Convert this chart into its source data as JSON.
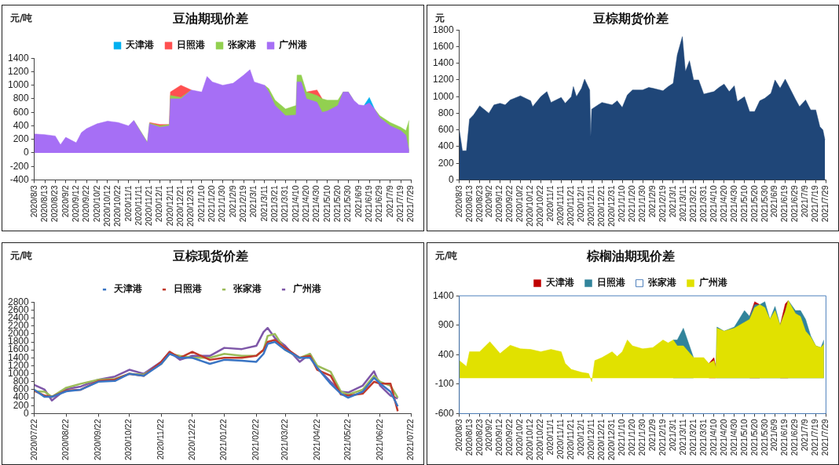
{
  "chart_data": [
    {
      "type": "area",
      "title": "豆油期现价差",
      "ylabel": "元/吨",
      "legend": "top",
      "grid": false,
      "marker": "none",
      "x": [
        "2020-08-03",
        "2020-08-13",
        "2020-08-23",
        "2020-08-28",
        "2020-09-02",
        "2020-09-12",
        "2020-09-17",
        "2020-09-22",
        "2020-10-02",
        "2020-10-12",
        "2020-10-22",
        "2020-11-01",
        "2020-11-06",
        "2020-11-11",
        "2020-11-19",
        "2020-11-21",
        "2020-12-01",
        "2020-12-10",
        "2020-12-11",
        "2020-12-21",
        "2020-12-31",
        "2021-01-10",
        "2021-01-15",
        "2021-01-20",
        "2021-01-30",
        "2021-02-09",
        "2021-02-19",
        "2021-02-25",
        "2021-03-01",
        "2021-03-11",
        "2021-03-15",
        "2021-03-21",
        "2021-03-31",
        "2021-04-10",
        "2021-04-11",
        "2021-04-15",
        "2021-04-20",
        "2021-04-30",
        "2021-05-05",
        "2021-05-10",
        "2021-05-20",
        "2021-05-25",
        "2021-05-30",
        "2021-06-04",
        "2021-06-09",
        "2021-06-14",
        "2021-06-19",
        "2021-06-24",
        "2021-06-29",
        "2021-07-09",
        "2021-07-19",
        "2021-07-24",
        "2021-07-27"
      ],
      "series": [
        {
          "name": "天津港",
          "color": "#00b0f0",
          "values": [
            null,
            null,
            null,
            null,
            null,
            null,
            null,
            null,
            null,
            null,
            null,
            null,
            null,
            null,
            null,
            null,
            null,
            null,
            null,
            null,
            null,
            null,
            null,
            null,
            null,
            null,
            null,
            null,
            null,
            null,
            null,
            null,
            null,
            null,
            null,
            null,
            null,
            null,
            null,
            null,
            null,
            null,
            null,
            null,
            null,
            700,
            820,
            650,
            null,
            null,
            null,
            null,
            null
          ]
        },
        {
          "name": "日照港",
          "color": "#ff5050",
          "values": [
            null,
            null,
            null,
            null,
            null,
            null,
            null,
            null,
            null,
            null,
            null,
            null,
            null,
            null,
            null,
            450,
            420,
            420,
            900,
            1000,
            930,
            null,
            null,
            null,
            null,
            null,
            null,
            null,
            null,
            null,
            null,
            null,
            null,
            null,
            null,
            null,
            900,
            930,
            800,
            null,
            null,
            null,
            null,
            null,
            null,
            null,
            null,
            null,
            null,
            null,
            null,
            null,
            null
          ]
        },
        {
          "name": "张家港",
          "color": "#92d050",
          "values": [
            null,
            null,
            null,
            null,
            null,
            null,
            null,
            null,
            null,
            null,
            null,
            null,
            480,
            360,
            160,
            440,
            400,
            420,
            850,
            820,
            930,
            null,
            null,
            null,
            null,
            null,
            null,
            null,
            null,
            1000,
            950,
            780,
            650,
            700,
            1150,
            1150,
            900,
            850,
            800,
            780,
            780,
            900,
            900,
            780,
            null,
            null,
            null,
            650,
            550,
            450,
            380,
            330,
            480
          ]
        },
        {
          "name": "广州港",
          "color": "#a66ff5",
          "values": [
            280,
            270,
            250,
            120,
            230,
            150,
            300,
            360,
            430,
            470,
            450,
            400,
            480,
            350,
            150,
            430,
            380,
            400,
            800,
            800,
            930,
            900,
            1130,
            1050,
            1000,
            1030,
            1150,
            1230,
            1050,
            1000,
            900,
            700,
            550,
            560,
            1050,
            1050,
            800,
            750,
            600,
            620,
            700,
            900,
            900,
            780,
            710,
            700,
            740,
            650,
            520,
            400,
            330,
            260,
            30
          ]
        }
      ],
      "ylim": [
        -400,
        1400
      ],
      "yticks": [
        -400,
        -200,
        0,
        200,
        400,
        600,
        800,
        1000,
        1200,
        1400
      ],
      "xlim": [
        "2020-08-03",
        "2021-07-29"
      ],
      "xticks": [
        {
          "value": "2020-08-03",
          "label": "2020/8/3"
        },
        {
          "value": "2020-08-13",
          "label": "2020/8/13"
        },
        {
          "value": "2020-08-23",
          "label": "2020/8/23"
        },
        {
          "value": "2020-09-02",
          "label": "2020/9/2"
        },
        {
          "value": "2020-09-12",
          "label": "2020/9/12"
        },
        {
          "value": "2020-09-22",
          "label": "2020/9/22"
        },
        {
          "value": "2020-10-02",
          "label": "2020/10/2"
        },
        {
          "value": "2020-10-12",
          "label": "2020/10/12"
        },
        {
          "value": "2020-10-22",
          "label": "2020/10/22"
        },
        {
          "value": "2020-11-01",
          "label": "2020/11/1"
        },
        {
          "value": "2020-11-11",
          "label": "2020/11/11"
        },
        {
          "value": "2020-11-21",
          "label": "2020/11/21"
        },
        {
          "value": "2020-12-01",
          "label": "2020/12/1"
        },
        {
          "value": "2020-12-11",
          "label": "2020/12/11"
        },
        {
          "value": "2020-12-21",
          "label": "2020/12/21"
        },
        {
          "value": "2020-12-31",
          "label": "2020/12/31"
        },
        {
          "value": "2021-01-10",
          "label": "2021/1/10"
        },
        {
          "value": "2021-01-20",
          "label": "2021/1/20"
        },
        {
          "value": "2021-01-30",
          "label": "2021/1/30"
        },
        {
          "value": "2021-02-09",
          "label": "2021/2/9"
        },
        {
          "value": "2021-02-19",
          "label": "2021/2/19"
        },
        {
          "value": "2021-03-01",
          "label": "2021/3/1"
        },
        {
          "value": "2021-03-11",
          "label": "2021/3/11"
        },
        {
          "value": "2021-03-21",
          "label": "2021/3/21"
        },
        {
          "value": "2021-03-31",
          "label": "2021/3/31"
        },
        {
          "value": "2021-04-10",
          "label": "2021/4/10"
        },
        {
          "value": "2021-04-20",
          "label": "2021/4/20"
        },
        {
          "value": "2021-04-30",
          "label": "2021/4/30"
        },
        {
          "value": "2021-05-10",
          "label": "2021/5/10"
        },
        {
          "value": "2021-05-20",
          "label": "2021/5/20"
        },
        {
          "value": "2021-05-30",
          "label": "2021/5/30"
        },
        {
          "value": "2021-06-09",
          "label": "2021/6/9"
        },
        {
          "value": "2021-06-19",
          "label": "2021/6/19"
        },
        {
          "value": "2021-06-29",
          "label": "2021/6/29"
        },
        {
          "value": "2021-07-09",
          "label": "2021/7/9"
        },
        {
          "value": "2021-07-19",
          "label": "2021/7/19"
        },
        {
          "value": "2021-07-29",
          "label": "2021/7/29"
        }
      ]
    },
    {
      "type": "area",
      "title": "豆棕期货价差",
      "ylabel": "元",
      "legend": false,
      "grid": false,
      "marker": "none",
      "x": [
        "2020-08-03",
        "2020-08-06",
        "2020-08-10",
        "2020-08-13",
        "2020-08-17",
        "2020-08-23",
        "2020-09-01",
        "2020-09-06",
        "2020-09-12",
        "2020-09-17",
        "2020-09-22",
        "2020-10-02",
        "2020-10-12",
        "2020-10-14",
        "2020-10-22",
        "2020-10-28",
        "2020-11-01",
        "2020-11-11",
        "2020-11-15",
        "2020-11-21",
        "2020-11-23",
        "2020-11-26",
        "2020-12-01",
        "2020-12-04",
        "2020-12-09",
        "2020-12-10",
        "2020-12-11",
        "2020-12-21",
        "2020-12-31",
        "2021-01-05",
        "2021-01-10",
        "2021-01-15",
        "2021-01-20",
        "2021-01-30",
        "2021-02-05",
        "2021-02-09",
        "2021-02-19",
        "2021-02-24",
        "2021-03-01",
        "2021-03-05",
        "2021-03-10",
        "2021-03-13",
        "2021-03-17",
        "2021-03-21",
        "2021-03-26",
        "2021-03-31",
        "2021-04-10",
        "2021-04-15",
        "2021-04-20",
        "2021-04-25",
        "2021-04-30",
        "2021-05-03",
        "2021-05-10",
        "2021-05-15",
        "2021-05-20",
        "2021-05-25",
        "2021-05-30",
        "2021-06-05",
        "2021-06-09",
        "2021-06-14",
        "2021-06-19",
        "2021-06-29",
        "2021-07-03",
        "2021-07-09",
        "2021-07-14",
        "2021-07-19",
        "2021-07-23",
        "2021-07-26",
        "2021-07-28"
      ],
      "series": [
        {
          "color": "#1f4678",
          "values": [
            600,
            350,
            350,
            730,
            780,
            890,
            800,
            900,
            920,
            900,
            960,
            1010,
            950,
            880,
            1000,
            1060,
            930,
            990,
            920,
            1000,
            1120,
            1000,
            1100,
            1210,
            1080,
            520,
            850,
            930,
            900,
            950,
            870,
            1020,
            1080,
            1080,
            1110,
            1100,
            1070,
            1120,
            1160,
            1500,
            1720,
            1300,
            1430,
            1200,
            1200,
            1030,
            1060,
            1110,
            1150,
            1060,
            1130,
            940,
            1000,
            820,
            820,
            950,
            980,
            1040,
            1200,
            1100,
            1210,
            970,
            880,
            960,
            840,
            840,
            640,
            600,
            480
          ]
        }
      ],
      "ylim": [
        0,
        1800
      ],
      "yticks": [
        0,
        200,
        400,
        600,
        800,
        1000,
        1200,
        1400,
        1600,
        1800
      ],
      "xlim": [
        "2020-08-03",
        "2021-07-29"
      ],
      "xticks": [
        {
          "value": "2020-08-03",
          "label": "2020/8/3"
        },
        {
          "value": "2020-08-13",
          "label": "2020/8/13"
        },
        {
          "value": "2020-08-23",
          "label": "2020/8/23"
        },
        {
          "value": "2020-09-02",
          "label": "2020/9/2"
        },
        {
          "value": "2020-09-12",
          "label": "2020/9/12"
        },
        {
          "value": "2020-09-22",
          "label": "2020/9/22"
        },
        {
          "value": "2020-10-02",
          "label": "2020/10/2"
        },
        {
          "value": "2020-10-12",
          "label": "2020/10/12"
        },
        {
          "value": "2020-10-22",
          "label": "2020/10/22"
        },
        {
          "value": "2020-11-01",
          "label": "2020/11/1"
        },
        {
          "value": "2020-11-11",
          "label": "2020/11/11"
        },
        {
          "value": "2020-11-21",
          "label": "2020/11/21"
        },
        {
          "value": "2020-12-01",
          "label": "2020/12/1"
        },
        {
          "value": "2020-12-11",
          "label": "2020/12/11"
        },
        {
          "value": "2020-12-21",
          "label": "2020/12/21"
        },
        {
          "value": "2020-12-31",
          "label": "2020/12/31"
        },
        {
          "value": "2021-01-10",
          "label": "2021/1/10"
        },
        {
          "value": "2021-01-20",
          "label": "2021/1/20"
        },
        {
          "value": "2021-01-30",
          "label": "2021/1/30"
        },
        {
          "value": "2021-02-09",
          "label": "2021/2/9"
        },
        {
          "value": "2021-02-19",
          "label": "2021/2/19"
        },
        {
          "value": "2021-03-01",
          "label": "2021/3/1"
        },
        {
          "value": "2021-03-11",
          "label": "2021/3/11"
        },
        {
          "value": "2021-03-21",
          "label": "2021/3/21"
        },
        {
          "value": "2021-03-31",
          "label": "2021/3/31"
        },
        {
          "value": "2021-04-10",
          "label": "2021/4/10"
        },
        {
          "value": "2021-04-20",
          "label": "2021/4/20"
        },
        {
          "value": "2021-04-30",
          "label": "2021/4/30"
        },
        {
          "value": "2021-05-10",
          "label": "2021/5/10"
        },
        {
          "value": "2021-05-20",
          "label": "2021/5/20"
        },
        {
          "value": "2021-05-30",
          "label": "2021/5/30"
        },
        {
          "value": "2021-06-09",
          "label": "2021/6/9"
        },
        {
          "value": "2021-06-19",
          "label": "2021/6/19"
        },
        {
          "value": "2021-06-29",
          "label": "2021/6/29"
        },
        {
          "value": "2021-07-09",
          "label": "2021/7/9"
        },
        {
          "value": "2021-07-19",
          "label": "2021/7/19"
        },
        {
          "value": "2021-07-29",
          "label": "2021/7/29"
        }
      ]
    },
    {
      "type": "line",
      "title": "豆棕现货价差",
      "ylabel": "元/吨",
      "legend": "top",
      "grid": false,
      "marker": "none",
      "line_style": "solid",
      "x": [
        "2020-07-22",
        "2020-08-01",
        "2020-08-08",
        "2020-08-22",
        "2020-09-05",
        "2020-09-22",
        "2020-10-08",
        "2020-10-22",
        "2020-11-05",
        "2020-11-22",
        "2020-11-30",
        "2020-12-10",
        "2020-12-22",
        "2021-01-08",
        "2021-01-22",
        "2021-02-08",
        "2021-02-22",
        "2021-03-01",
        "2021-03-05",
        "2021-03-12",
        "2021-03-22",
        "2021-04-05",
        "2021-04-15",
        "2021-04-22",
        "2021-05-05",
        "2021-05-15",
        "2021-05-22",
        "2021-06-05",
        "2021-06-16",
        "2021-06-22",
        "2021-07-02",
        "2021-07-09"
      ],
      "series": [
        {
          "name": "天津港",
          "color": "#3a75c4",
          "values": [
            600,
            420,
            420,
            560,
            600,
            800,
            820,
            1000,
            950,
            1250,
            1500,
            1400,
            1400,
            1250,
            1350,
            1330,
            1300,
            1500,
            1750,
            1800,
            1600,
            1400,
            1400,
            1150,
            750,
            500,
            400,
            550,
            900,
            750,
            550,
            180
          ]
        },
        {
          "name": "日照港",
          "color": "#c0392b",
          "values": [
            570,
            450,
            420,
            580,
            600,
            820,
            850,
            1000,
            950,
            1300,
            1550,
            1400,
            1550,
            1350,
            1400,
            1400,
            1450,
            1600,
            1800,
            1850,
            1650,
            1400,
            1450,
            1100,
            950,
            480,
            450,
            500,
            800,
            750,
            750,
            60
          ]
        },
        {
          "name": "张家港",
          "color": "#9bbb59",
          "values": [
            560,
            550,
            420,
            650,
            750,
            850,
            870,
            1000,
            980,
            1250,
            1500,
            1450,
            1400,
            1400,
            1500,
            1450,
            1450,
            1600,
            1950,
            2000,
            1600,
            1400,
            1500,
            1200,
            1050,
            550,
            480,
            600,
            950,
            800,
            700,
            400
          ]
        },
        {
          "name": "广州港",
          "color": "#7e57a8",
          "values": [
            720,
            600,
            330,
            620,
            680,
            850,
            930,
            1100,
            1000,
            1300,
            1550,
            1350,
            1450,
            1450,
            1650,
            1620,
            1700,
            2050,
            2150,
            1900,
            1700,
            1300,
            1500,
            1150,
            800,
            550,
            530,
            700,
            1060,
            700,
            450,
            380
          ]
        }
      ],
      "ylim": [
        0,
        2800
      ],
      "yticks": [
        0,
        200,
        400,
        600,
        800,
        1000,
        1200,
        1400,
        1600,
        1800,
        2000,
        2200,
        2400,
        2600,
        2800
      ],
      "xlim": [
        "2020-07-22",
        "2021-07-22"
      ],
      "xticks": [
        {
          "value": "2020-07-22",
          "label": "2020/07/22"
        },
        {
          "value": "2020-08-22",
          "label": "2020/08/22"
        },
        {
          "value": "2020-09-22",
          "label": "2020/09/22"
        },
        {
          "value": "2020-10-22",
          "label": "2020/10/22"
        },
        {
          "value": "2020-11-22",
          "label": "2020/11/22"
        },
        {
          "value": "2020-12-22",
          "label": "2020/12/22"
        },
        {
          "value": "2021-01-22",
          "label": "2021/01/22"
        },
        {
          "value": "2021-02-22",
          "label": "2021/02/22"
        },
        {
          "value": "2021-03-22",
          "label": "2021/03/22"
        },
        {
          "value": "2021-04-22",
          "label": "2021/04/22"
        },
        {
          "value": "2021-05-22",
          "label": "2021/05/22"
        },
        {
          "value": "2021-06-22",
          "label": "2021/06/22"
        },
        {
          "value": "2021-07-22",
          "label": "2021/07/22"
        }
      ]
    },
    {
      "type": "area",
      "title": "棕榈油期现价差",
      "ylabel": "元/吨",
      "legend": "top",
      "grid": false,
      "marker": "none",
      "x": [
        "2020-08-03",
        "2020-08-10",
        "2020-08-13",
        "2020-08-23",
        "2020-09-02",
        "2020-09-12",
        "2020-09-22",
        "2020-10-02",
        "2020-10-12",
        "2020-10-22",
        "2020-11-01",
        "2020-11-11",
        "2020-11-15",
        "2020-11-21",
        "2020-12-01",
        "2020-12-08",
        "2020-12-11",
        "2020-12-14",
        "2020-12-21",
        "2020-12-31",
        "2021-01-05",
        "2021-01-10",
        "2021-01-15",
        "2021-01-20",
        "2021-01-30",
        "2021-02-09",
        "2021-02-19",
        "2021-02-24",
        "2021-03-01",
        "2021-03-05",
        "2021-03-11",
        "2021-03-21",
        "2021-03-31",
        "2021-04-05",
        "2021-04-10",
        "2021-04-12",
        "2021-04-13",
        "2021-04-20",
        "2021-04-30",
        "2021-05-10",
        "2021-05-15",
        "2021-05-20",
        "2021-05-25",
        "2021-05-30",
        "2021-06-04",
        "2021-06-09",
        "2021-06-14",
        "2021-06-19",
        "2021-06-22",
        "2021-06-29",
        "2021-07-04",
        "2021-07-09",
        "2021-07-14",
        "2021-07-19",
        "2021-07-24",
        "2021-07-27"
      ],
      "series": [
        {
          "name": "天津港",
          "color": "#c00000",
          "values": [
            null,
            null,
            null,
            null,
            null,
            null,
            null,
            null,
            null,
            null,
            null,
            null,
            null,
            null,
            null,
            null,
            null,
            null,
            null,
            null,
            null,
            null,
            null,
            null,
            null,
            null,
            null,
            null,
            null,
            null,
            null,
            null,
            null,
            250,
            350,
            180,
            null,
            null,
            null,
            null,
            1050,
            1300,
            1250,
            null,
            null,
            null,
            900,
            1260,
            1320,
            null,
            null,
            null,
            null,
            null,
            null,
            null
          ]
        },
        {
          "name": "日照港",
          "color": "#31849b",
          "values": [
            null,
            null,
            null,
            null,
            null,
            null,
            null,
            null,
            null,
            null,
            null,
            null,
            null,
            null,
            null,
            null,
            null,
            null,
            null,
            null,
            null,
            null,
            null,
            null,
            null,
            null,
            null,
            null,
            650,
            650,
            850,
            350,
            null,
            null,
            null,
            180,
            870,
            800,
            870,
            1150,
            1050,
            1250,
            1250,
            1300,
            1000,
            1220,
            900,
            1130,
            1320,
            1150,
            1150,
            1000,
            720,
            550,
            520,
            650
          ]
        },
        {
          "name": "张家港",
          "color": "#ffffff",
          "values": [
            null,
            null,
            null,
            null,
            null,
            null,
            null,
            null,
            null,
            null,
            null,
            null,
            null,
            null,
            null,
            null,
            null,
            null,
            null,
            null,
            null,
            null,
            null,
            null,
            null,
            null,
            null,
            null,
            null,
            null,
            null,
            null,
            null,
            null,
            null,
            null,
            null,
            null,
            null,
            null,
            null,
            null,
            null,
            null,
            null,
            null,
            null,
            null,
            null,
            null,
            null,
            null,
            null,
            null,
            null,
            null
          ]
        },
        {
          "name": "广州港",
          "color": "#e1e100",
          "values": [
            300,
            200,
            450,
            450,
            620,
            420,
            560,
            500,
            490,
            450,
            490,
            450,
            250,
            150,
            100,
            80,
            -60,
            300,
            350,
            450,
            370,
            450,
            650,
            550,
            500,
            520,
            650,
            600,
            650,
            550,
            550,
            350,
            350,
            250,
            300,
            180,
            850,
            800,
            850,
            950,
            1000,
            1200,
            1250,
            1200,
            1000,
            1150,
            900,
            1130,
            1320,
            1100,
            1050,
            800,
            700,
            550,
            520,
            580
          ]
        }
      ],
      "ylim": [
        -600,
        1400
      ],
      "yticks": [
        -600,
        -100,
        400,
        900,
        1400
      ],
      "xlim": [
        "2020-08-03",
        "2021-07-29"
      ],
      "xticks": [
        {
          "value": "2020-08-03",
          "label": "2020/8/3"
        },
        {
          "value": "2020-08-13",
          "label": "2020/8/13"
        },
        {
          "value": "2020-08-23",
          "label": "2020/8/23"
        },
        {
          "value": "2020-09-02",
          "label": "2020/9/2"
        },
        {
          "value": "2020-09-12",
          "label": "2020/9/12"
        },
        {
          "value": "2020-09-22",
          "label": "2020/9/22"
        },
        {
          "value": "2020-10-02",
          "label": "2020/10/2"
        },
        {
          "value": "2020-10-12",
          "label": "2020/10/12"
        },
        {
          "value": "2020-10-22",
          "label": "2020/10/22"
        },
        {
          "value": "2020-11-01",
          "label": "2020/11/1"
        },
        {
          "value": "2020-11-11",
          "label": "2020/11/11"
        },
        {
          "value": "2020-11-21",
          "label": "2020/11/21"
        },
        {
          "value": "2020-12-01",
          "label": "2020/12/1"
        },
        {
          "value": "2020-12-11",
          "label": "2020/12/11"
        },
        {
          "value": "2020-12-21",
          "label": "2020/12/21"
        },
        {
          "value": "2020-12-31",
          "label": "2020/12/31"
        },
        {
          "value": "2021-01-10",
          "label": "2021/1/10"
        },
        {
          "value": "2021-01-20",
          "label": "2021/1/20"
        },
        {
          "value": "2021-01-30",
          "label": "2021/1/30"
        },
        {
          "value": "2021-02-09",
          "label": "2021/2/9"
        },
        {
          "value": "2021-02-19",
          "label": "2021/2/19"
        },
        {
          "value": "2021-03-01",
          "label": "2021/3/1"
        },
        {
          "value": "2021-03-11",
          "label": "2021/3/11"
        },
        {
          "value": "2021-03-21",
          "label": "2021/3/21"
        },
        {
          "value": "2021-03-31",
          "label": "2021/3/31"
        },
        {
          "value": "2021-04-10",
          "label": "2021/4/10"
        },
        {
          "value": "2021-04-20",
          "label": "2021/4/20"
        },
        {
          "value": "2021-04-30",
          "label": "2021/4/30"
        },
        {
          "value": "2021-05-10",
          "label": "2021/5/10"
        },
        {
          "value": "2021-05-20",
          "label": "2021/5/20"
        },
        {
          "value": "2021-05-30",
          "label": "2021/5/30"
        },
        {
          "value": "2021-06-09",
          "label": "2021/6/9"
        },
        {
          "value": "2021-06-19",
          "label": "2021/6/19"
        },
        {
          "value": "2021-06-29",
          "label": "2021/6/29"
        },
        {
          "value": "2021-07-09",
          "label": "2021/7/9"
        },
        {
          "value": "2021-07-19",
          "label": "2021/7/19"
        },
        {
          "value": "2021-07-29",
          "label": "2021/7/29"
        }
      ]
    }
  ]
}
